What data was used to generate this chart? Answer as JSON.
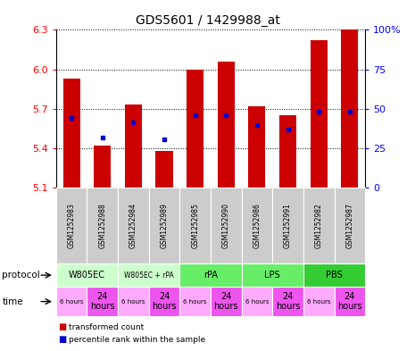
{
  "title": "GDS5601 / 1429988_at",
  "samples": [
    "GSM1252983",
    "GSM1252988",
    "GSM1252984",
    "GSM1252989",
    "GSM1252985",
    "GSM1252990",
    "GSM1252986",
    "GSM1252991",
    "GSM1252982",
    "GSM1252987"
  ],
  "red_values": [
    5.93,
    5.42,
    5.73,
    5.38,
    6.0,
    6.06,
    5.72,
    5.65,
    6.22,
    6.3
  ],
  "blue_values": [
    5.63,
    5.48,
    5.6,
    5.47,
    5.65,
    5.65,
    5.58,
    5.54,
    5.68,
    5.68
  ],
  "ymin": 5.1,
  "ymax": 6.3,
  "yticks_left": [
    5.1,
    5.4,
    5.7,
    6.0,
    6.3
  ],
  "yticks_right": [
    0,
    25,
    50,
    75,
    100
  ],
  "protocols": [
    {
      "label": "W805EC",
      "start": 0,
      "end": 2,
      "color": "#ccffcc"
    },
    {
      "label": "W805EC + rPA",
      "start": 2,
      "end": 4,
      "color": "#ccffcc"
    },
    {
      "label": "rPA",
      "start": 4,
      "end": 6,
      "color": "#66ee66"
    },
    {
      "label": "LPS",
      "start": 6,
      "end": 8,
      "color": "#66ee66"
    },
    {
      "label": "PBS",
      "start": 8,
      "end": 10,
      "color": "#33cc33"
    }
  ],
  "bar_color": "#cc0000",
  "dot_color": "#0000cc",
  "bg_color": "#ffffff",
  "sample_bg": "#cccccc",
  "time_color_6": "#ffaaff",
  "time_color_24": "#ee55ee"
}
